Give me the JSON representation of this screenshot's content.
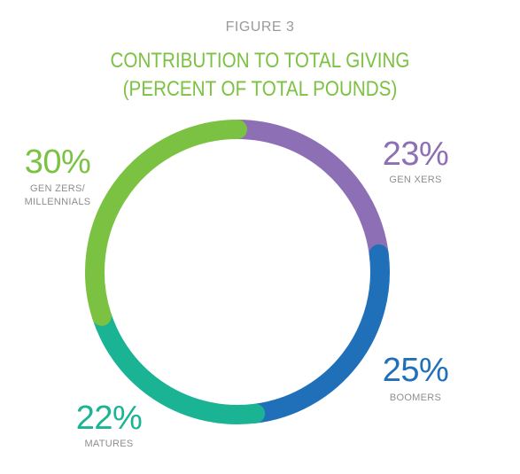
{
  "figure_label": "FIGURE 3",
  "title_lines": [
    "CONTRIBUTION TO TOTAL GIVING",
    "(PERCENT OF TOTAL POUNDS)"
  ],
  "colors": {
    "title": "#7cc242",
    "figure_label": "#9a9a9a",
    "category_text": "#8e8e8e"
  },
  "chart_data": {
    "type": "pie",
    "style": "donut",
    "title": "CONTRIBUTION TO TOTAL GIVING (PERCENT OF TOTAL POUNDS)",
    "unit": "%",
    "categories": [
      "GEN XERS",
      "BOOMERS",
      "MATURES",
      "GEN ZERS/ MILLENNIALS"
    ],
    "values": [
      23,
      25,
      22,
      30
    ],
    "labels": [
      {
        "value": "23%",
        "category": [
          "GEN XERS"
        ]
      },
      {
        "value": "25%",
        "category": [
          "BOOMERS"
        ]
      },
      {
        "value": "22%",
        "category": [
          "MATURES"
        ]
      },
      {
        "value": "30%",
        "category": [
          "GEN ZERS/",
          "MILLENNIALS"
        ]
      }
    ],
    "colors": [
      "#8d6fb5",
      "#1f6fb9",
      "#1ab394",
      "#7cc242"
    ],
    "start": "top",
    "direction": "clockwise"
  }
}
